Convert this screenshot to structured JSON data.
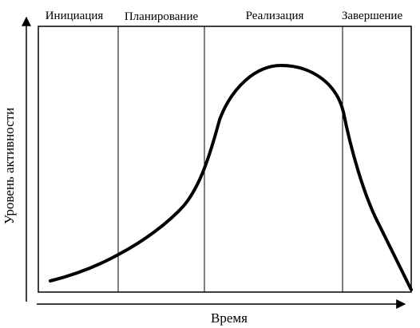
{
  "diagram": {
    "phases": [
      {
        "label": "Инициация"
      },
      {
        "label": "Планирование"
      },
      {
        "label": "Реализация"
      },
      {
        "label": "Завершение"
      }
    ],
    "y_axis_label": "Уровень активности",
    "x_axis_label": "Время",
    "colors": {
      "line": "#000000",
      "background": "#ffffff"
    }
  }
}
